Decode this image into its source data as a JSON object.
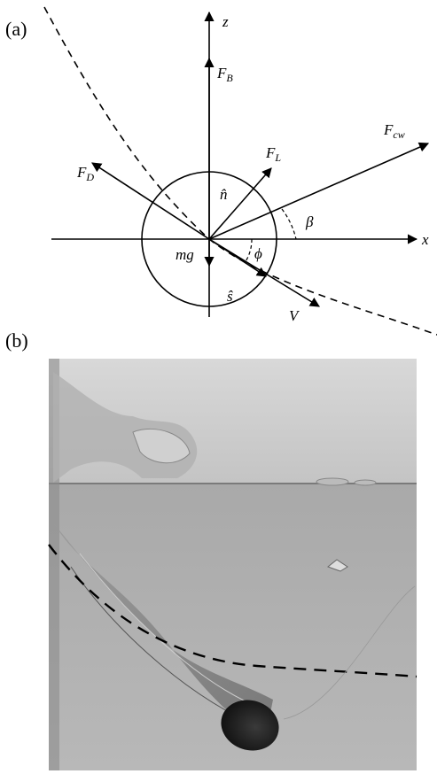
{
  "panel_a": {
    "label": "(a)",
    "axes": {
      "z": "z",
      "x": "x"
    },
    "forces": [
      {
        "base": "F",
        "sub": "B"
      },
      {
        "base": "F",
        "sub": "cw"
      },
      {
        "base": "F",
        "sub": "L"
      },
      {
        "base": "F",
        "sub": "D"
      }
    ],
    "symbols": {
      "n_hat": "n̂",
      "s_hat": "ŝ",
      "beta": "β",
      "phi": "ϕ",
      "mg": "mg",
      "V": "V⃗"
    }
  },
  "panel_b": {
    "label": "(b)"
  }
}
